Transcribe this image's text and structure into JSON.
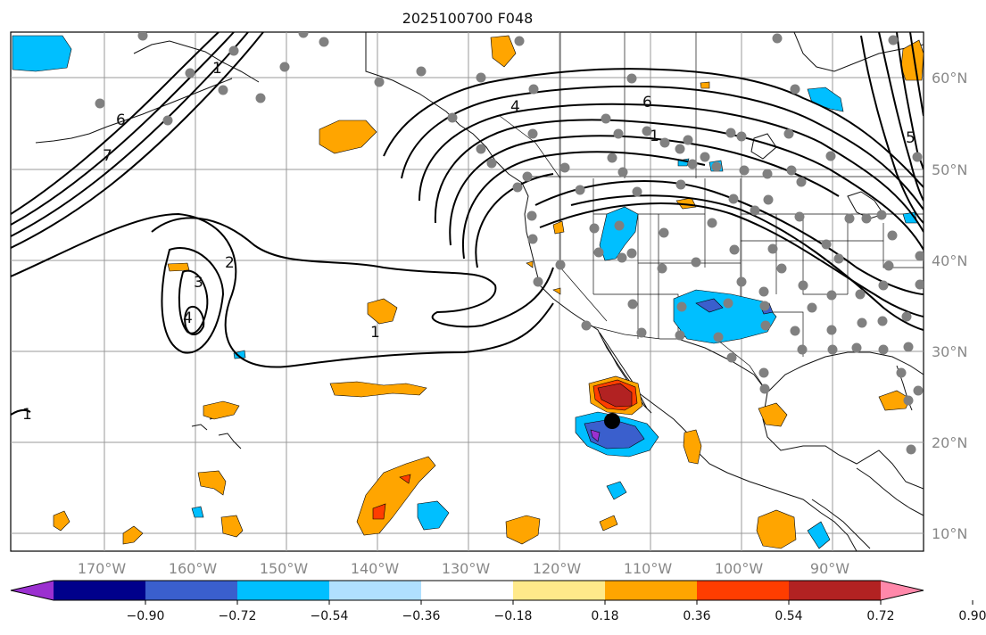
{
  "title": "2025100700 F048",
  "map": {
    "lon_labels": [
      "170°W",
      "160°W",
      "150°W",
      "140°W",
      "130°W",
      "120°W",
      "110°W",
      "100°W",
      "90°W"
    ],
    "lat_labels": [
      "60°N",
      "50°N",
      "40°N",
      "30°N",
      "20°N",
      "10°N"
    ],
    "contour_labels": [
      "1",
      "2",
      "3",
      "4",
      "5",
      "6",
      "7"
    ],
    "storm_marker": "storm-center"
  },
  "colorbar": {
    "tick_labels": [
      "−0.90",
      "−0.72",
      "−0.54",
      "−0.36",
      "−0.18",
      "0.18",
      "0.36",
      "0.54",
      "0.72",
      "0.90"
    ],
    "colors": [
      "#9b30d0",
      "#00008b",
      "#3a5fcd",
      "#00bfff",
      "#b0e0ff",
      "#ffffff",
      "#ffe98a",
      "#ffa500",
      "#ff3d00",
      "#b22222",
      "#ff88aa"
    ]
  },
  "colors": {
    "ocean": "#ffffff",
    "land_line": "#111111",
    "grid": "#999999",
    "station": "#808080",
    "contour": "#000000"
  }
}
